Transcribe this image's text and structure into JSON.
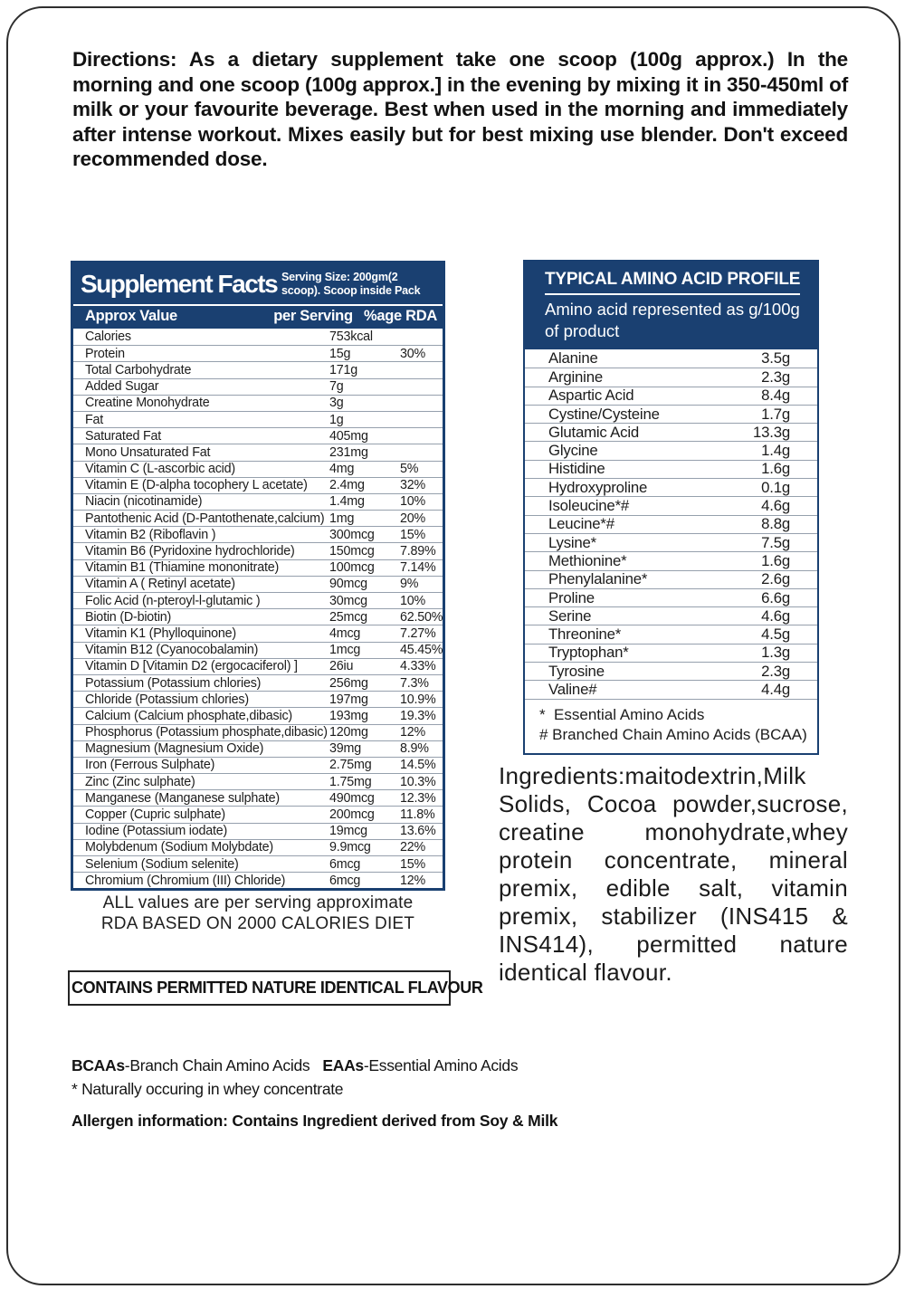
{
  "directions": {
    "text": "Directions: As a dietary supplement take one scoop (100g approx.) In the morning and one scoop (100g approx.] in the evening by mixing it in 350-450ml of milk or your favourite beverage. Best when used in the morning and immediately after intense workout. Mixes easily but for best mixing use blender. Don't exceed recommended dose."
  },
  "supplement_facts": {
    "title": "Supplement Facts",
    "serving_size": "Serving Size: 200gm(2 scoop). Scoop inside Pack",
    "columns": [
      "Approx Value",
      "per Serving",
      "%age RDA"
    ],
    "rows": [
      {
        "name": "Calories",
        "amt": "753kcal",
        "rda": ""
      },
      {
        "name": "Protein",
        "amt": "15g",
        "rda": "30%"
      },
      {
        "name": "Total Carbohydrate",
        "amt": "171g",
        "rda": ""
      },
      {
        "name": "Added Sugar",
        "amt": "7g",
        "rda": ""
      },
      {
        "name": "Creatine Monohydrate",
        "amt": "3g",
        "rda": ""
      },
      {
        "name": "Fat",
        "amt": "1g",
        "rda": ""
      },
      {
        "name": "Saturated Fat",
        "amt": "405mg",
        "rda": ""
      },
      {
        "name": "Mono Unsaturated Fat",
        "amt": "231mg",
        "rda": ""
      },
      {
        "name": "Vitamin C (L-ascorbic acid)",
        "amt": "4mg",
        "rda": "5%"
      },
      {
        "name": "Vitamin E (D-alpha tocophery L acetate)",
        "amt": "2.4mg",
        "rda": "32%"
      },
      {
        "name": "Niacin (nicotinamide)",
        "amt": "1.4mg",
        "rda": "10%"
      },
      {
        "name": "Pantothenic Acid (D-Pantothenate,calcium)",
        "amt": "1mg",
        "rda": "20%"
      },
      {
        "name": "Vitamin B2 (Riboflavin )",
        "amt": "300mcg",
        "rda": "15%"
      },
      {
        "name": "Vitamin B6 (Pyridoxine hydrochloride)",
        "amt": "150mcg",
        "rda": "7.89%"
      },
      {
        "name": "Vitamin B1 (Thiamine mononitrate)",
        "amt": "100mcg",
        "rda": "7.14%"
      },
      {
        "name": "Vitamin A ( Retinyl acetate)",
        "amt": "90mcg",
        "rda": "9%"
      },
      {
        "name": "Folic Acid (n-pteroyl-l-glutamic )",
        "amt": "30mcg",
        "rda": "10%"
      },
      {
        "name": "Biotin  (D-biotin)",
        "amt": "25mcg",
        "rda": "62.50%"
      },
      {
        "name": "Vitamin K1 (Phylloquinone)",
        "amt": "4mcg",
        "rda": "7.27%"
      },
      {
        "name": "Vitamin B12  (Cyanocobalamin)",
        "amt": "1mcg",
        "rda": "45.45%"
      },
      {
        "name": "Vitamin D [Vitamin D2 (ergocaciferol) ]",
        "amt": "26iu",
        "rda": "4.33%"
      },
      {
        "name": "Potassium (Potassium chlories)",
        "amt": "256mg",
        "rda": "7.3%"
      },
      {
        "name": "Chloride (Potassium chlories)",
        "amt": "197mg",
        "rda": "10.9%"
      },
      {
        "name": "Calcium (Calcium phosphate,dibasic)",
        "amt": "193mg",
        "rda": "19.3%"
      },
      {
        "name": "Phosphorus (Potassium phosphate,dibasic)",
        "amt": "120mg",
        "rda": "12%"
      },
      {
        "name": "Magnesium (Magnesium Oxide)",
        "amt": "39mg",
        "rda": "8.9%"
      },
      {
        "name": "Iron (Ferrous Sulphate)",
        "amt": "2.75mg",
        "rda": "14.5%"
      },
      {
        "name": "Zinc (Zinc sulphate)",
        "amt": "1.75mg",
        "rda": "10.3%"
      },
      {
        "name": "Manganese (Manganese sulphate)",
        "amt": "490mcg",
        "rda": "12.3%"
      },
      {
        "name": "Copper (Cupric sulphate)",
        "amt": "200mcg",
        "rda": "11.8%"
      },
      {
        "name": "Iodine (Potassium iodate)",
        "amt": "19mcg",
        "rda": "13.6%"
      },
      {
        "name": "Molybdenum (Sodium Molybdate)",
        "amt": "9.9mcg",
        "rda": "22%"
      },
      {
        "name": "Selenium (Sodium selenite)",
        "amt": "6mcg",
        "rda": "15%"
      },
      {
        "name": "Chromium (Chromium (III) Chloride)",
        "amt": "6mcg",
        "rda": "12%"
      }
    ]
  },
  "notes": {
    "note_line1": "ALL values are per serving approximate",
    "note_line2": "RDA BASED ON 2000 CALORIES DIET",
    "flavour_box": "CONTAINS PERMITTED NATURE IDENTICAL FLAVOUR",
    "bcaa_label": "BCAAs",
    "bcaa_text": "-Branch Chain Amino Acids",
    "eaa_label": "EAAs",
    "eaa_text": "-Essential Amino Acids",
    "naturally": "* Naturally occuring in whey concentrate",
    "allergen": "Allergen information: Contains Ingredient derived from Soy & Milk"
  },
  "amino_profile": {
    "title": "TYPICAL AMINO ACID PROFILE",
    "subtitle": "Amino acid represented as g/100g of product",
    "rows": [
      {
        "name": "Alanine",
        "value": "3.5g"
      },
      {
        "name": "Arginine",
        "value": "2.3g"
      },
      {
        "name": "Aspartic Acid",
        "value": "8.4g"
      },
      {
        "name": "Cystine/Cysteine",
        "value": "1.7g"
      },
      {
        "name": "Glutamic Acid",
        "value": "13.3g"
      },
      {
        "name": "Glycine",
        "value": "1.4g"
      },
      {
        "name": "Histidine",
        "value": "1.6g"
      },
      {
        "name": "Hydroxyproline",
        "value": "0.1g"
      },
      {
        "name": "Isoleucine*#",
        "value": "4.6g"
      },
      {
        "name": "Leucine*#",
        "value": "8.8g"
      },
      {
        "name": "Lysine*",
        "value": "7.5g"
      },
      {
        "name": "Methionine*",
        "value": "1.6g"
      },
      {
        "name": "Phenylalanine*",
        "value": "2.6g"
      },
      {
        "name": "Proline",
        "value": "6.6g"
      },
      {
        "name": "Serine",
        "value": "4.6g"
      },
      {
        "name": "Threonine*",
        "value": "4.5g"
      },
      {
        "name": "Tryptophan*",
        "value": "1.3g"
      },
      {
        "name": "Tyrosine",
        "value": "2.3g"
      },
      {
        "name": "Valine#",
        "value": "4.4g"
      }
    ],
    "footnote_essential": "*  Essential Amino Acids",
    "footnote_bcaa": "# Branched Chain Amino Acids (BCAA)"
  },
  "ingredients": {
    "text": "Ingredients:maitodextrin,Milk Solids, Cocoa powder,sucrose, creatine monohydrate,whey protein concentrate, mineral premix, edible salt, vitamin premix, stabilizer (INS415 & INS414), permitted nature identical flavour."
  },
  "colors": {
    "navy": "#1a4071",
    "row_divider": "#96a0ad",
    "border_black": "#2e2e2e"
  }
}
